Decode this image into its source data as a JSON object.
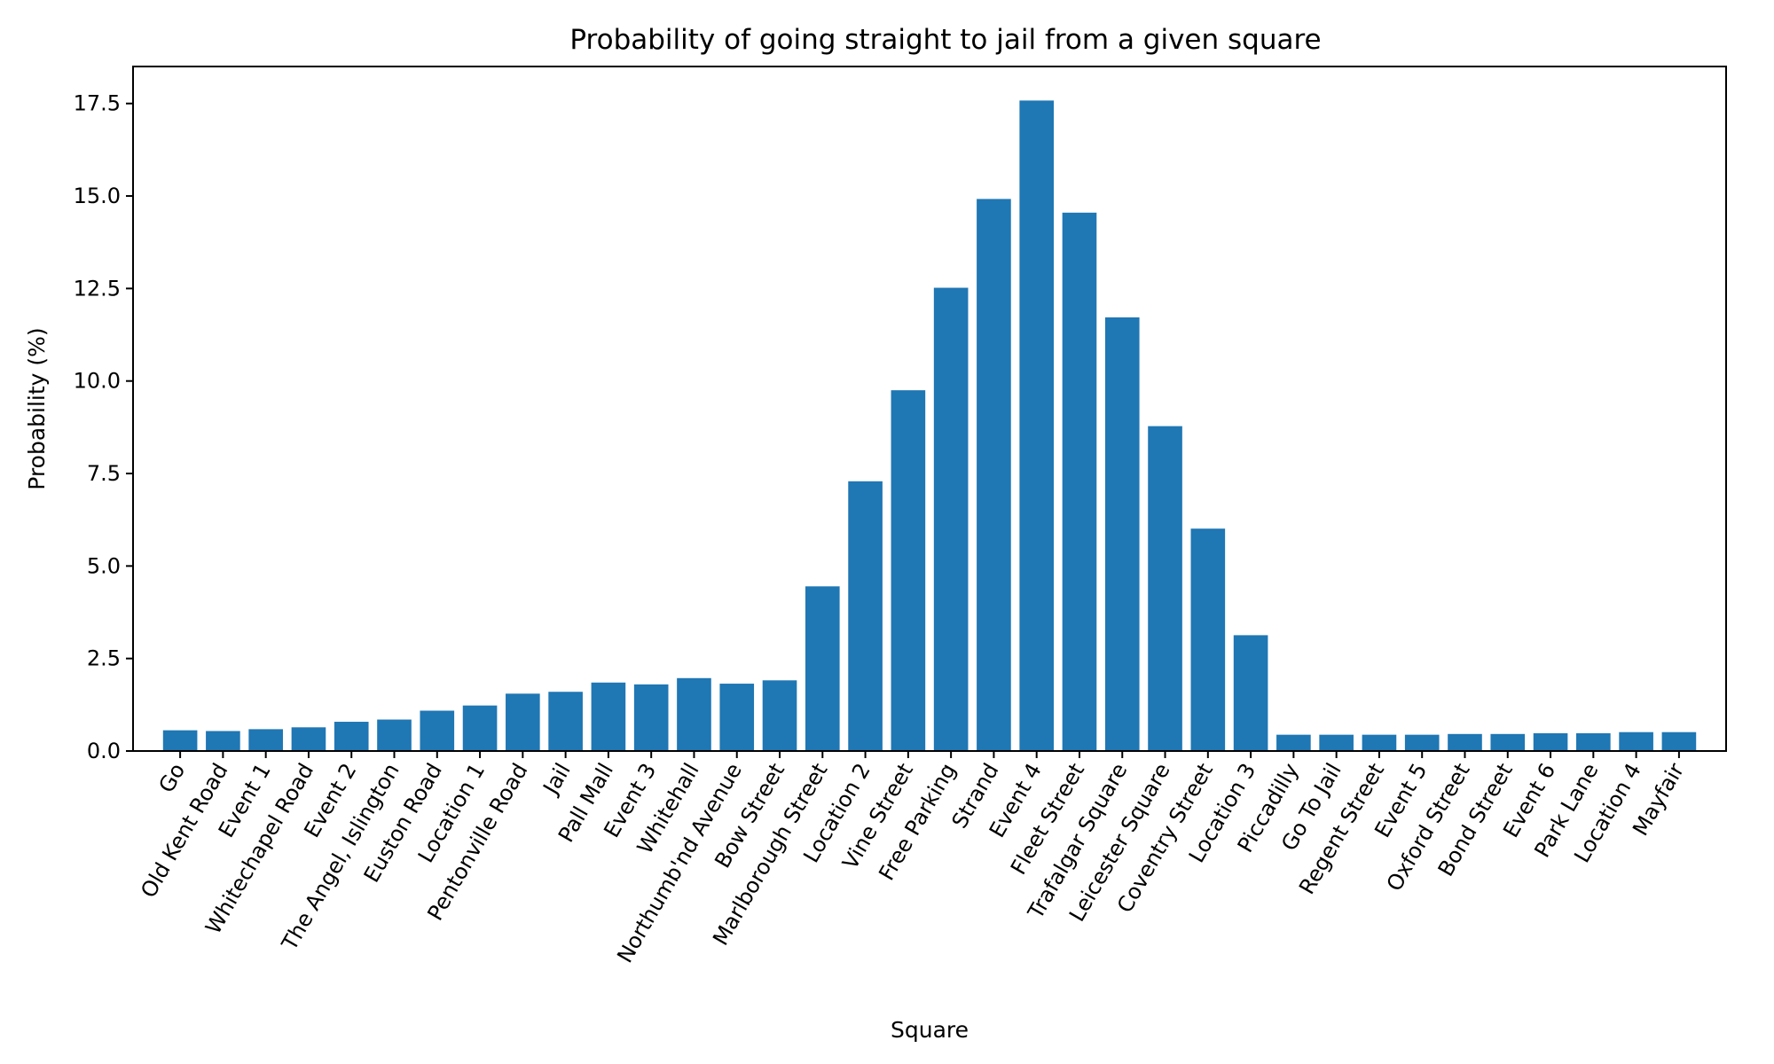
{
  "chart_data": {
    "type": "bar",
    "title": "Probability of going straight to jail from a given square",
    "xlabel": "Square",
    "ylabel": "Probability (%)",
    "ylim": [
      0,
      18.5
    ],
    "yticks": [
      0.0,
      2.5,
      5.0,
      7.5,
      10.0,
      12.5,
      15.0,
      17.5
    ],
    "ytick_labels": [
      "0.0",
      "2.5",
      "5.0",
      "7.5",
      "10.0",
      "12.5",
      "15.0",
      "17.5"
    ],
    "grid": false,
    "bar_color": "#1f77b4",
    "categories": [
      "Go",
      "Old Kent Road",
      "Event 1",
      "Whitechapel Road",
      "Event 2",
      "The Angel, Islington",
      "Euston Road",
      "Location 1",
      "Pentonville Road",
      "Jail",
      "Pall Mall",
      "Event 3",
      "Whitehall",
      "Northumb'nd Avenue",
      "Bow Street",
      "Marlborough Street",
      "Location 2",
      "Vine Street",
      "Free Parking",
      "Strand",
      "Event 4",
      "Fleet Street",
      "Trafalgar Square",
      "Leicester Square",
      "Coventry Street",
      "Location 3",
      "Piccadilly",
      "Go To Jail",
      "Regent Street",
      "Event 5",
      "Oxford Street",
      "Bond Street",
      "Event 6",
      "Park Lane",
      "Location 4",
      "Mayfair"
    ],
    "values": [
      0.56,
      0.54,
      0.59,
      0.64,
      0.79,
      0.85,
      1.09,
      1.23,
      1.55,
      1.6,
      1.85,
      1.8,
      1.97,
      1.82,
      1.91,
      4.45,
      7.29,
      9.75,
      12.52,
      14.92,
      17.58,
      14.55,
      11.72,
      8.78,
      6.01,
      3.13,
      0.44,
      0.44,
      0.44,
      0.44,
      0.46,
      0.46,
      0.48,
      0.48,
      0.51,
      0.51
    ]
  }
}
